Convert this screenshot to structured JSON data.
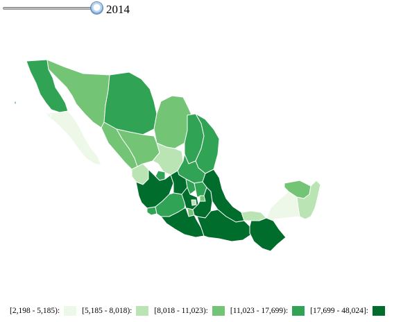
{
  "year_control": {
    "value": "2014",
    "slider_position": 1.0
  },
  "legend": {
    "items": [
      {
        "label": "[2,198 - 5,185):",
        "color": "#edf8e9"
      },
      {
        "label": "[5,185 - 8,018):",
        "color": "#bae4b3"
      },
      {
        "label": "[8,018 - 11,023):",
        "color": "#74c476"
      },
      {
        "label": "[11,023 - 17,699):",
        "color": "#31a354"
      },
      {
        "label": "[17,699 - 48,024]:",
        "color": "#006d2c"
      }
    ]
  }
}
